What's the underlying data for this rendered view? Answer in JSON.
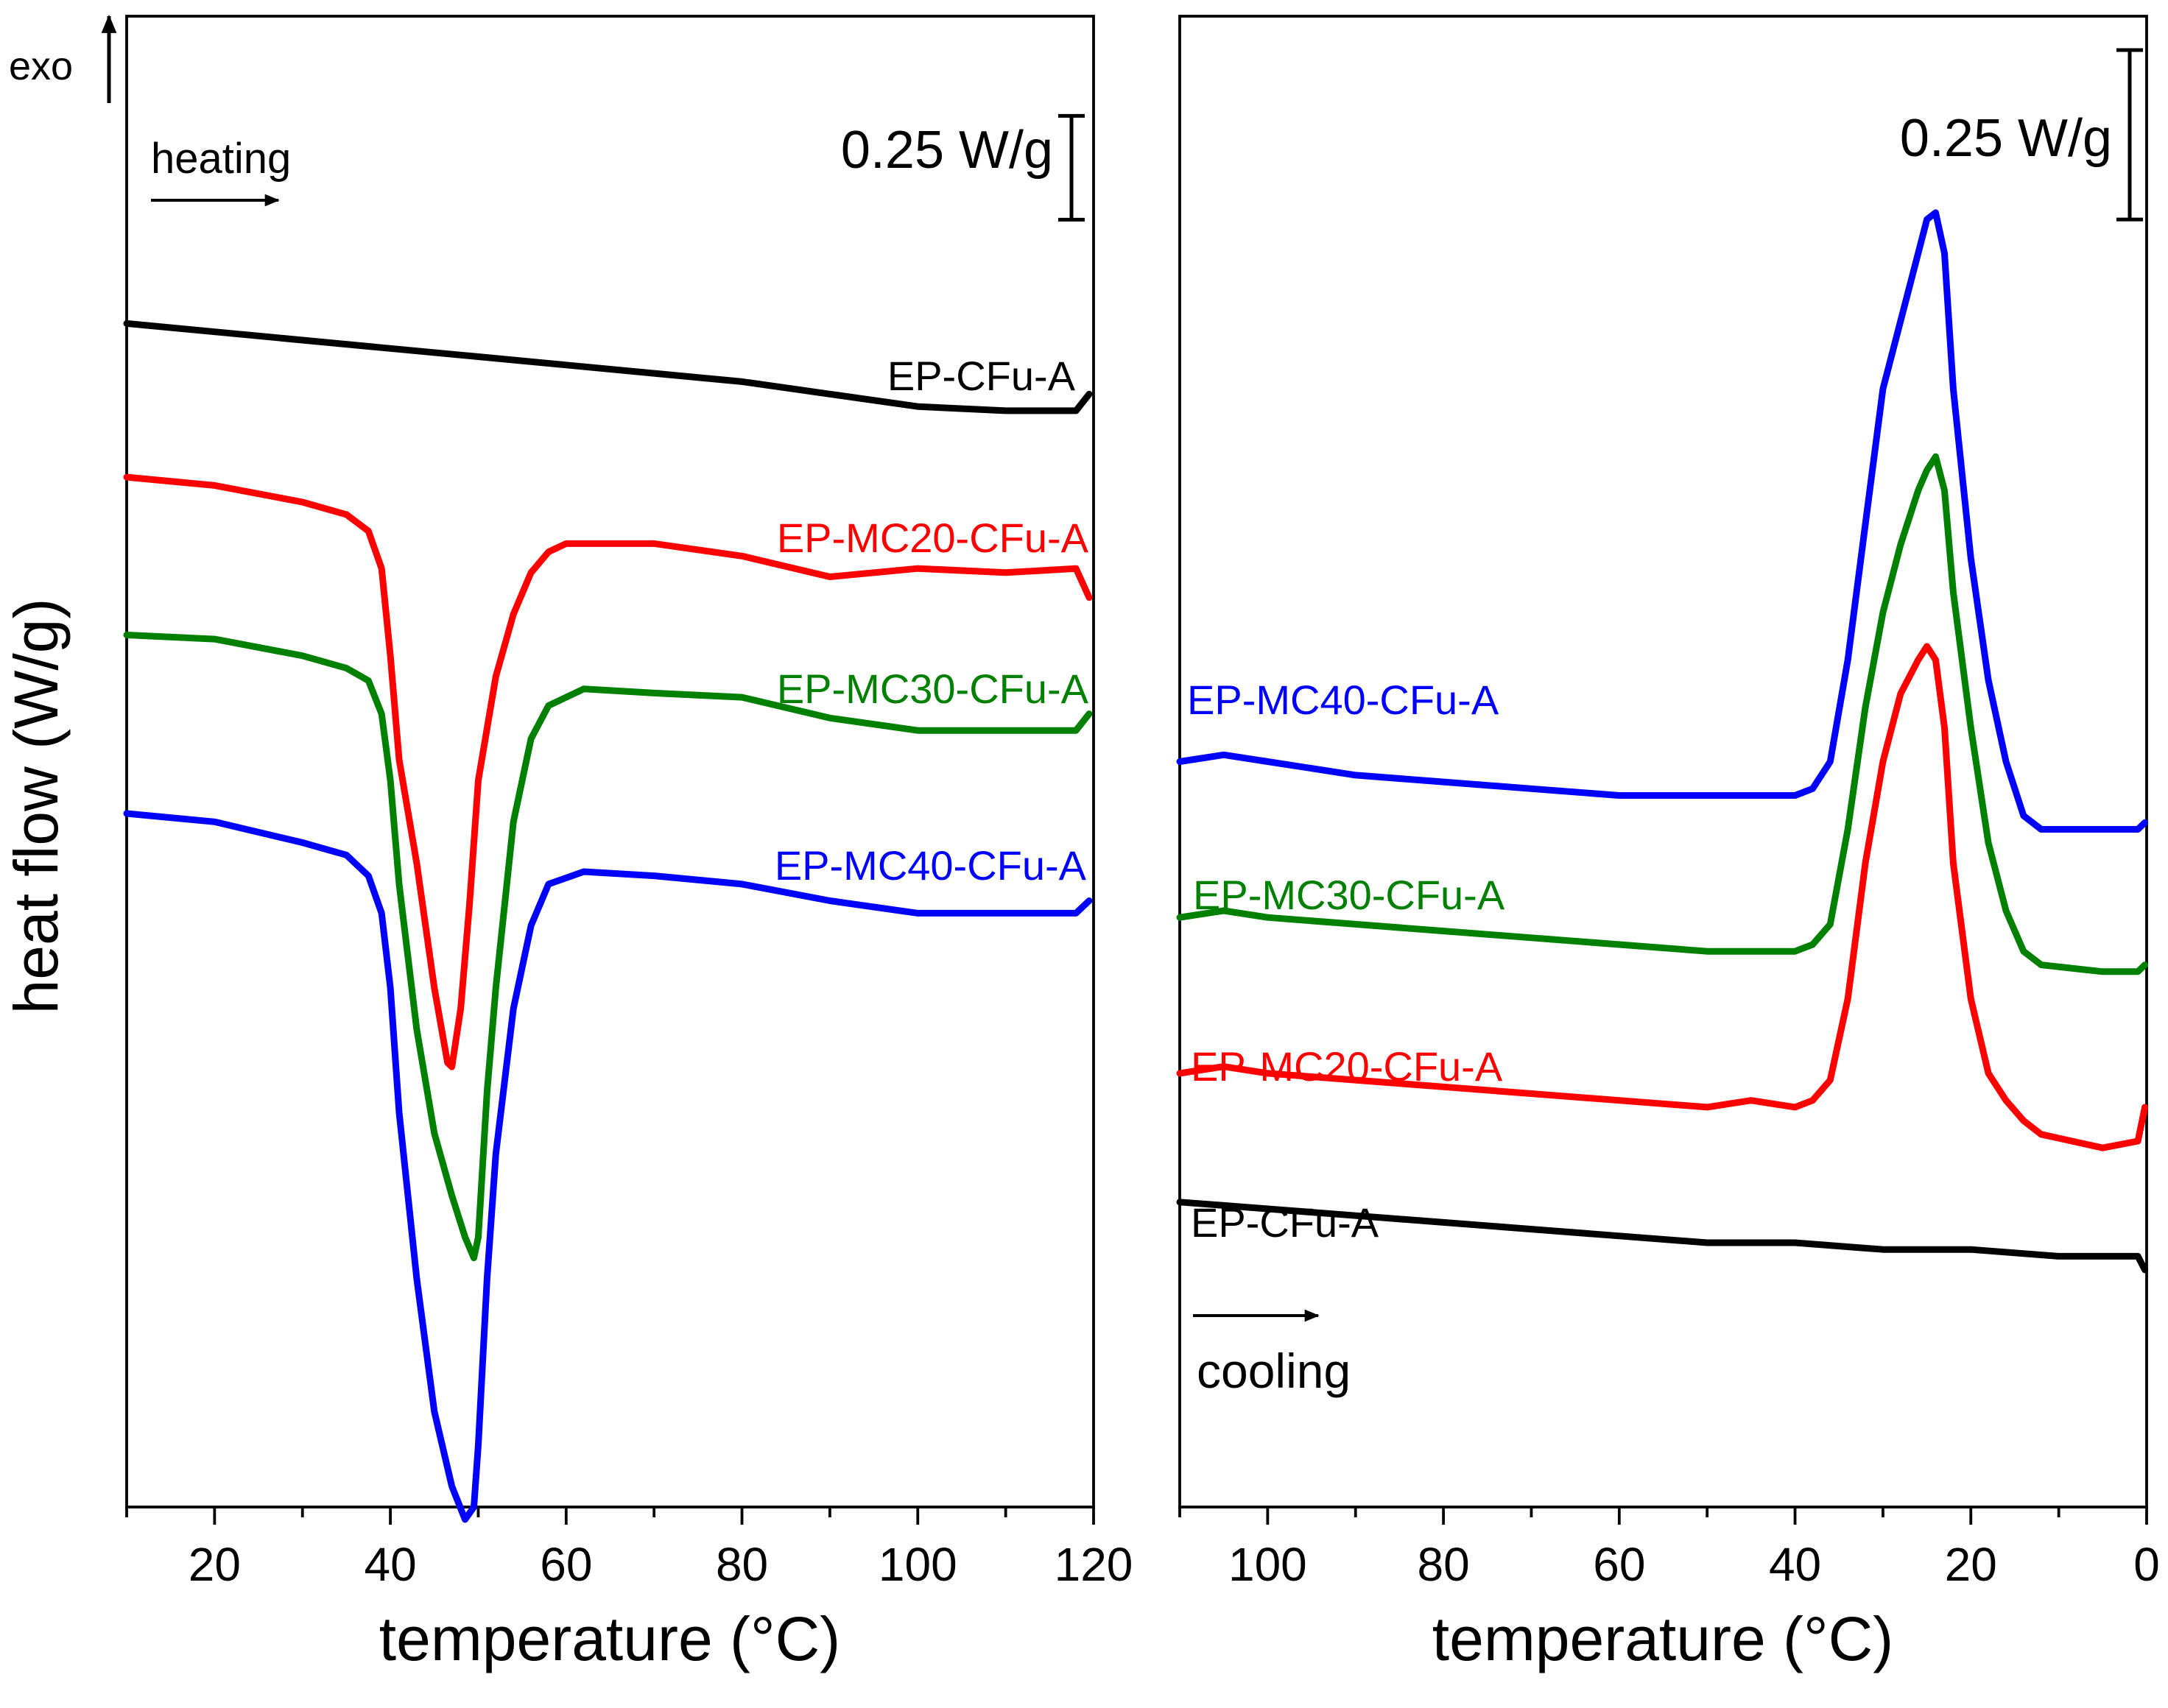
{
  "figure": {
    "ylabel": "heat flow (W/g)",
    "exo_label": "exo"
  },
  "chart_data": [
    {
      "type": "line",
      "panel": "left",
      "xlabel": "temperature (°C)",
      "xlim": [
        10,
        120
      ],
      "xticks": [
        20,
        40,
        60,
        80,
        100,
        120
      ],
      "x_reversed": false,
      "ylim": [
        -2.85,
        0.74
      ],
      "yticks_shown": false,
      "annotation": "heating",
      "scale_bar": {
        "label": "0.25 W/g",
        "value": 0.25,
        "y_from": 0.25,
        "y_to": 0.5
      },
      "series": [
        {
          "name": "EP-CFu-A",
          "color": "#000000",
          "points": [
            [
              10,
              0.0
            ],
            [
              20,
              -0.02
            ],
            [
              30,
              -0.04
            ],
            [
              40,
              -0.06
            ],
            [
              50,
              -0.08
            ],
            [
              60,
              -0.1
            ],
            [
              70,
              -0.12
            ],
            [
              80,
              -0.14
            ],
            [
              90,
              -0.17
            ],
            [
              100,
              -0.2
            ],
            [
              110,
              -0.21
            ],
            [
              118,
              -0.21
            ],
            [
              119.5,
              -0.17
            ]
          ]
        },
        {
          "name": "EP-MC20-CFu-A",
          "color": "#ff0000",
          "points": [
            [
              10,
              -0.37
            ],
            [
              20,
              -0.39
            ],
            [
              30,
              -0.43
            ],
            [
              35,
              -0.46
            ],
            [
              37.5,
              -0.5
            ],
            [
              39,
              -0.59
            ],
            [
              40,
              -0.8
            ],
            [
              41,
              -1.05
            ],
            [
              43,
              -1.3
            ],
            [
              45,
              -1.6
            ],
            [
              46.5,
              -1.78
            ],
            [
              47,
              -1.79
            ],
            [
              48,
              -1.65
            ],
            [
              49,
              -1.4
            ],
            [
              50,
              -1.1
            ],
            [
              52,
              -0.85
            ],
            [
              54,
              -0.7
            ],
            [
              56,
              -0.6
            ],
            [
              58,
              -0.55
            ],
            [
              60,
              -0.53
            ],
            [
              70,
              -0.53
            ],
            [
              80,
              -0.56
            ],
            [
              90,
              -0.61
            ],
            [
              100,
              -0.59
            ],
            [
              110,
              -0.6
            ],
            [
              118,
              -0.59
            ],
            [
              119.5,
              -0.66
            ]
          ]
        },
        {
          "name": "EP-MC30-CFu-A",
          "color": "#008000",
          "points": [
            [
              10,
              -0.75
            ],
            [
              20,
              -0.76
            ],
            [
              30,
              -0.8
            ],
            [
              35,
              -0.83
            ],
            [
              37.5,
              -0.86
            ],
            [
              39,
              -0.94
            ],
            [
              40,
              -1.1
            ],
            [
              41,
              -1.35
            ],
            [
              43,
              -1.7
            ],
            [
              45,
              -1.95
            ],
            [
              47,
              -2.1
            ],
            [
              48.5,
              -2.2
            ],
            [
              49.5,
              -2.25
            ],
            [
              50,
              -2.2
            ],
            [
              51,
              -1.85
            ],
            [
              52,
              -1.6
            ],
            [
              54,
              -1.2
            ],
            [
              56,
              -1.0
            ],
            [
              58,
              -0.92
            ],
            [
              62,
              -0.88
            ],
            [
              70,
              -0.89
            ],
            [
              80,
              -0.9
            ],
            [
              90,
              -0.95
            ],
            [
              100,
              -0.98
            ],
            [
              110,
              -0.98
            ],
            [
              118,
              -0.98
            ],
            [
              119.5,
              -0.94
            ]
          ]
        },
        {
          "name": "EP-MC40-CFu-A",
          "color": "#0000ff",
          "points": [
            [
              10,
              -1.18
            ],
            [
              20,
              -1.2
            ],
            [
              30,
              -1.25
            ],
            [
              35,
              -1.28
            ],
            [
              37.5,
              -1.33
            ],
            [
              39,
              -1.42
            ],
            [
              40,
              -1.6
            ],
            [
              41,
              -1.9
            ],
            [
              43,
              -2.3
            ],
            [
              45,
              -2.62
            ],
            [
              47,
              -2.8
            ],
            [
              48.5,
              -2.88
            ],
            [
              49.5,
              -2.85
            ],
            [
              50,
              -2.7
            ],
            [
              51,
              -2.3
            ],
            [
              52,
              -2.0
            ],
            [
              54,
              -1.65
            ],
            [
              56,
              -1.45
            ],
            [
              58,
              -1.35
            ],
            [
              62,
              -1.32
            ],
            [
              70,
              -1.33
            ],
            [
              80,
              -1.35
            ],
            [
              90,
              -1.39
            ],
            [
              100,
              -1.42
            ],
            [
              110,
              -1.42
            ],
            [
              118,
              -1.42
            ],
            [
              119.5,
              -1.39
            ]
          ]
        }
      ]
    },
    {
      "type": "line",
      "panel": "right",
      "xlabel": "temperature (°C)",
      "xlim": [
        110,
        0
      ],
      "xticks": [
        100,
        80,
        60,
        40,
        20,
        0
      ],
      "x_reversed": true,
      "ylim": [
        -1.1,
        1.1
      ],
      "yticks_shown": false,
      "annotation": "cooling",
      "scale_bar": {
        "label": "0.25 W/g",
        "value": 0.25,
        "y_from": 0.8,
        "y_to": 1.05
      },
      "series": [
        {
          "name": "EP-MC40-CFu-A",
          "color": "#0000ff",
          "points": [
            [
              110,
              0.0
            ],
            [
              105,
              0.01
            ],
            [
              100,
              0.0
            ],
            [
              90,
              -0.02
            ],
            [
              80,
              -0.03
            ],
            [
              70,
              -0.04
            ],
            [
              60,
              -0.05
            ],
            [
              50,
              -0.05
            ],
            [
              40,
              -0.05
            ],
            [
              38,
              -0.04
            ],
            [
              36,
              0.0
            ],
            [
              34,
              0.15
            ],
            [
              32,
              0.35
            ],
            [
              30,
              0.55
            ],
            [
              28,
              0.65
            ],
            [
              26,
              0.75
            ],
            [
              25,
              0.8
            ],
            [
              24,
              0.81
            ],
            [
              23,
              0.75
            ],
            [
              22,
              0.55
            ],
            [
              20,
              0.3
            ],
            [
              18,
              0.12
            ],
            [
              16,
              0.0
            ],
            [
              14,
              -0.08
            ],
            [
              12,
              -0.1
            ],
            [
              5,
              -0.1
            ],
            [
              1,
              -0.1
            ],
            [
              0.2,
              -0.09
            ]
          ]
        },
        {
          "name": "EP-MC30-CFu-A",
          "color": "#008000",
          "points": [
            [
              110,
              -0.23
            ],
            [
              105,
              -0.22
            ],
            [
              100,
              -0.23
            ],
            [
              90,
              -0.24
            ],
            [
              80,
              -0.25
            ],
            [
              70,
              -0.26
            ],
            [
              60,
              -0.27
            ],
            [
              50,
              -0.28
            ],
            [
              40,
              -0.28
            ],
            [
              38,
              -0.27
            ],
            [
              36,
              -0.24
            ],
            [
              34,
              -0.1
            ],
            [
              32,
              0.08
            ],
            [
              30,
              0.22
            ],
            [
              28,
              0.32
            ],
            [
              26,
              0.4
            ],
            [
              25,
              0.43
            ],
            [
              24,
              0.45
            ],
            [
              23,
              0.4
            ],
            [
              22,
              0.25
            ],
            [
              20,
              0.05
            ],
            [
              18,
              -0.12
            ],
            [
              16,
              -0.22
            ],
            [
              14,
              -0.28
            ],
            [
              12,
              -0.3
            ],
            [
              5,
              -0.31
            ],
            [
              1,
              -0.31
            ],
            [
              0.2,
              -0.3
            ]
          ]
        },
        {
          "name": "EP-MC20-CFu-A",
          "color": "#ff0000",
          "points": [
            [
              110,
              -0.46
            ],
            [
              105,
              -0.45
            ],
            [
              100,
              -0.46
            ],
            [
              90,
              -0.47
            ],
            [
              80,
              -0.48
            ],
            [
              70,
              -0.49
            ],
            [
              60,
              -0.5
            ],
            [
              50,
              -0.51
            ],
            [
              45,
              -0.5
            ],
            [
              40,
              -0.51
            ],
            [
              38,
              -0.5
            ],
            [
              36,
              -0.47
            ],
            [
              34,
              -0.35
            ],
            [
              32,
              -0.15
            ],
            [
              30,
              0.0
            ],
            [
              28,
              0.1
            ],
            [
              26,
              0.15
            ],
            [
              25,
              0.17
            ],
            [
              24,
              0.15
            ],
            [
              23,
              0.05
            ],
            [
              22,
              -0.15
            ],
            [
              20,
              -0.35
            ],
            [
              18,
              -0.46
            ],
            [
              16,
              -0.5
            ],
            [
              14,
              -0.53
            ],
            [
              12,
              -0.55
            ],
            [
              5,
              -0.57
            ],
            [
              1,
              -0.56
            ],
            [
              0.2,
              -0.51
            ]
          ]
        },
        {
          "name": "EP-CFu-A",
          "color": "#000000",
          "points": [
            [
              110,
              -0.65
            ],
            [
              100,
              -0.66
            ],
            [
              90,
              -0.67
            ],
            [
              80,
              -0.68
            ],
            [
              70,
              -0.69
            ],
            [
              60,
              -0.7
            ],
            [
              50,
              -0.71
            ],
            [
              40,
              -0.71
            ],
            [
              30,
              -0.72
            ],
            [
              20,
              -0.72
            ],
            [
              10,
              -0.73
            ],
            [
              5,
              -0.73
            ],
            [
              1,
              -0.73
            ],
            [
              0.2,
              -0.75
            ]
          ]
        }
      ]
    }
  ]
}
